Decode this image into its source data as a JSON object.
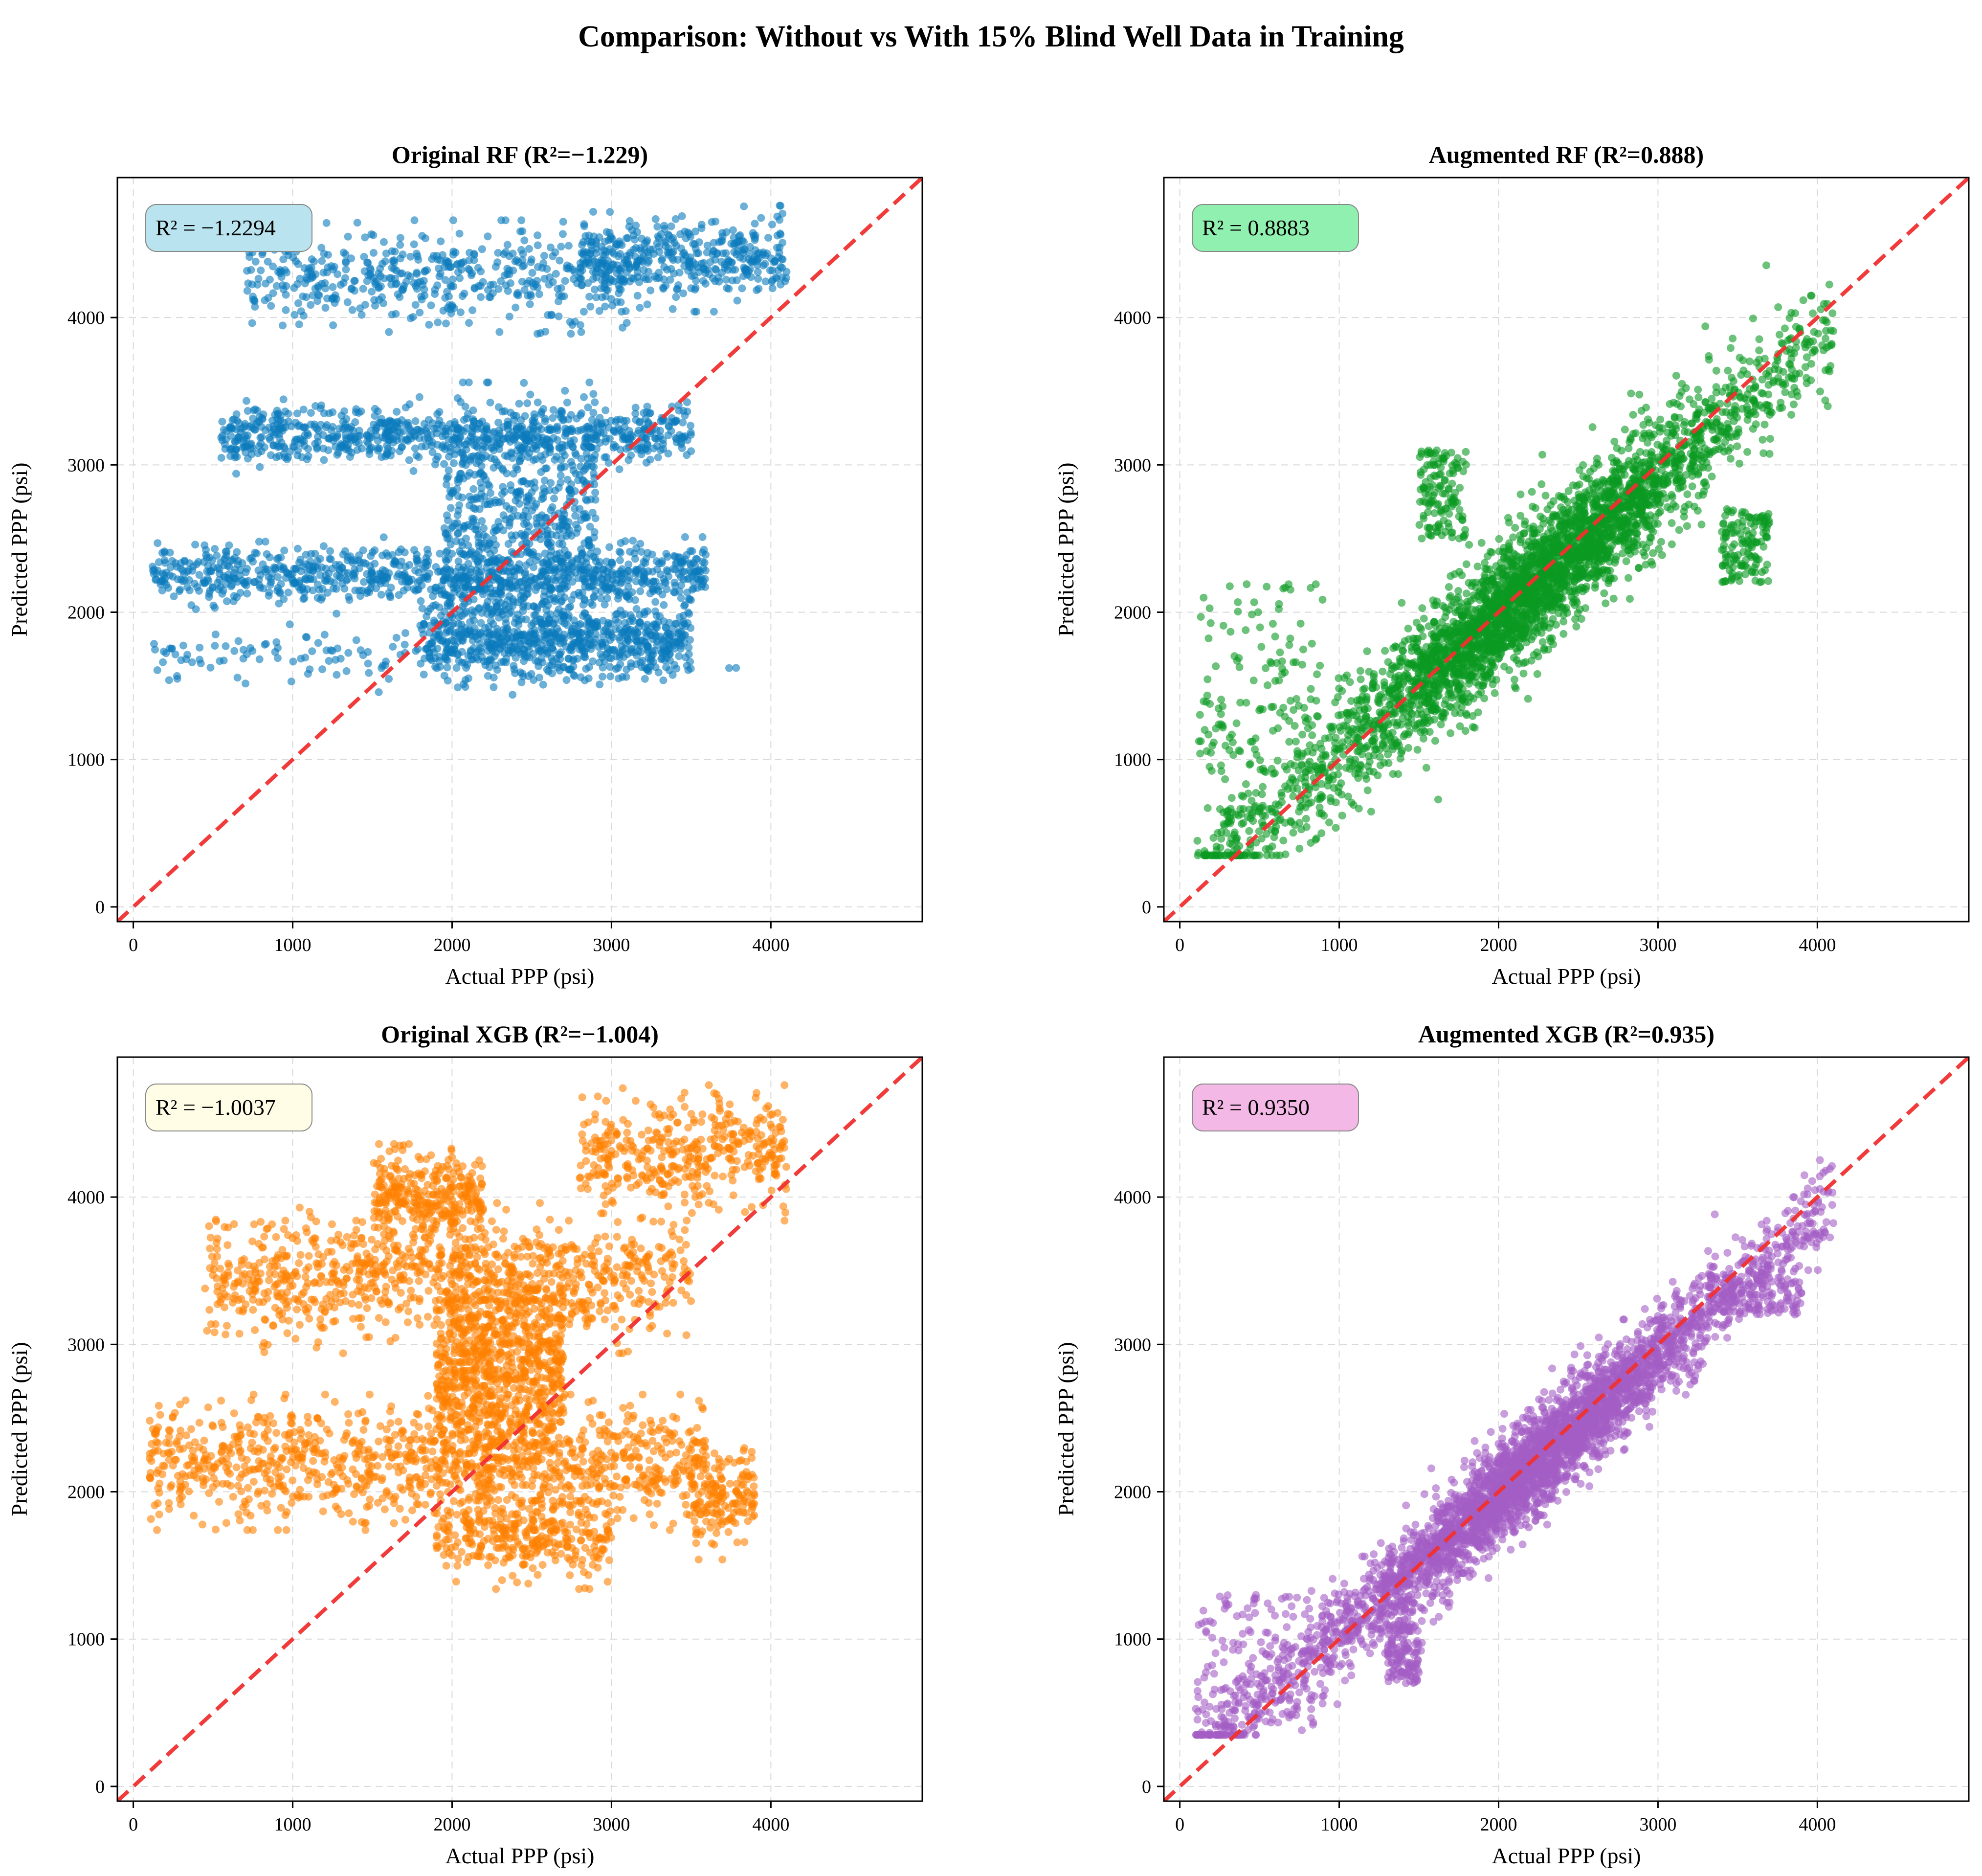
{
  "figure": {
    "title": "Comparison: Without vs With 15% Blind Well Data in Training"
  },
  "colors": {
    "reference_line": "#f03030",
    "grid": "#d9d9d9"
  },
  "chart_data": [
    {
      "id": "original-rf",
      "type": "scatter",
      "title": "Original RF (R²=−1.229)",
      "xlabel": "Actual PPP (psi)",
      "ylabel": "Predicted PPP (psi)",
      "xlim": [
        -100,
        4950
      ],
      "ylim": [
        -100,
        4950
      ],
      "xticks": [
        0,
        1000,
        2000,
        3000,
        4000
      ],
      "yticks": [
        0,
        1000,
        2000,
        3000,
        4000
      ],
      "grid": true,
      "reference_line": "y = x (dashed)",
      "r2_label": "R² = −1.2294",
      "r2_box_color": "#b9e3ee",
      "point_color": "#0b7bbd",
      "point_count_estimate": 4000,
      "clusters": [
        {
          "x": [
            120,
            3600
          ],
          "y": [
            2050,
            2450
          ],
          "weight": 0.22
        },
        {
          "x": [
            550,
            3500
          ],
          "y": [
            3000,
            3400
          ],
          "weight": 0.2
        },
        {
          "x": [
            1800,
            3500
          ],
          "y": [
            1550,
            2100
          ],
          "weight": 0.16
        },
        {
          "x": [
            1950,
            2900
          ],
          "y": [
            1600,
            3500
          ],
          "weight": 0.16
        },
        {
          "x": [
            700,
            3100
          ],
          "y": [
            3950,
            4600
          ],
          "weight": 0.12
        },
        {
          "x": [
            2800,
            4100
          ],
          "y": [
            4100,
            4700
          ],
          "weight": 0.1
        },
        {
          "x": [
            120,
            3900
          ],
          "y": [
            1500,
            1900
          ],
          "weight": 0.04
        }
      ]
    },
    {
      "id": "augmented-rf",
      "type": "scatter",
      "title": "Augmented RF (R²=0.888)",
      "xlabel": "Actual PPP (psi)",
      "ylabel": "Predicted PPP (psi)",
      "xlim": [
        -100,
        4950
      ],
      "ylim": [
        -100,
        4950
      ],
      "xticks": [
        0,
        1000,
        2000,
        3000,
        4000
      ],
      "yticks": [
        0,
        1000,
        2000,
        3000,
        4000
      ],
      "grid": true,
      "reference_line": "y = x (dashed)",
      "r2_label": "R² = 0.8883",
      "r2_box_color": "#90f0b0",
      "point_color": "#0a9a22",
      "point_count_estimate": 4000,
      "trend": {
        "x_range": [
          100,
          4100
        ],
        "slope": 0.93,
        "intercept": 120,
        "spread": 260
      },
      "outliers": [
        {
          "x": [
            100,
            900
          ],
          "y": [
            900,
            2200
          ]
        },
        {
          "x": [
            1500,
            1800
          ],
          "y": [
            2500,
            3100
          ]
        },
        {
          "x": [
            3400,
            3700
          ],
          "y": [
            2200,
            2700
          ]
        }
      ]
    },
    {
      "id": "original-xgb",
      "type": "scatter",
      "title": "Original XGB (R²=−1.004)",
      "xlabel": "Actual PPP (psi)",
      "ylabel": "Predicted PPP (psi)",
      "xlim": [
        -100,
        4950
      ],
      "ylim": [
        -100,
        4950
      ],
      "xticks": [
        0,
        1000,
        2000,
        3000,
        4000
      ],
      "yticks": [
        0,
        1000,
        2000,
        3000,
        4000
      ],
      "grid": true,
      "reference_line": "y = x (dashed)",
      "r2_label": "R² = −1.0037",
      "r2_box_color": "#fffde6",
      "point_color": "#ff8000",
      "point_count_estimate": 4000,
      "clusters": [
        {
          "x": [
            100,
            3600
          ],
          "y": [
            1800,
            2600
          ],
          "weight": 0.26
        },
        {
          "x": [
            450,
            3500
          ],
          "y": [
            3000,
            3900
          ],
          "weight": 0.22
        },
        {
          "x": [
            1900,
            2700
          ],
          "y": [
            2000,
            3600
          ],
          "weight": 0.22
        },
        {
          "x": [
            1500,
            2200
          ],
          "y": [
            3700,
            4300
          ],
          "weight": 0.08
        },
        {
          "x": [
            2800,
            4100
          ],
          "y": [
            3900,
            4700
          ],
          "weight": 0.1
        },
        {
          "x": [
            1900,
            3000
          ],
          "y": [
            1400,
            2000
          ],
          "weight": 0.08
        },
        {
          "x": [
            3500,
            3900
          ],
          "y": [
            1600,
            2400
          ],
          "weight": 0.04
        }
      ]
    },
    {
      "id": "augmented-xgb",
      "type": "scatter",
      "title": "Augmented XGB (R²=0.935)",
      "xlabel": "Actual PPP (psi)",
      "ylabel": "Predicted PPP (psi)",
      "xlim": [
        -100,
        4950
      ],
      "ylim": [
        -100,
        4950
      ],
      "xticks": [
        0,
        1000,
        2000,
        3000,
        4000
      ],
      "yticks": [
        0,
        1000,
        2000,
        3000,
        4000
      ],
      "grid": true,
      "reference_line": "y = x (dashed)",
      "r2_label": "R² = 0.9350",
      "r2_box_color": "#f4b8e6",
      "point_color": "#a45ec4",
      "point_count_estimate": 4000,
      "trend": {
        "x_range": [
          100,
          4100
        ],
        "slope": 0.94,
        "intercept": 100,
        "spread": 200
      },
      "outliers": [
        {
          "x": [
            100,
            900
          ],
          "y": [
            400,
            1300
          ]
        },
        {
          "x": [
            1300,
            1500
          ],
          "y": [
            700,
            1100
          ]
        },
        {
          "x": [
            3300,
            3900
          ],
          "y": [
            3200,
            3500
          ]
        }
      ]
    }
  ]
}
